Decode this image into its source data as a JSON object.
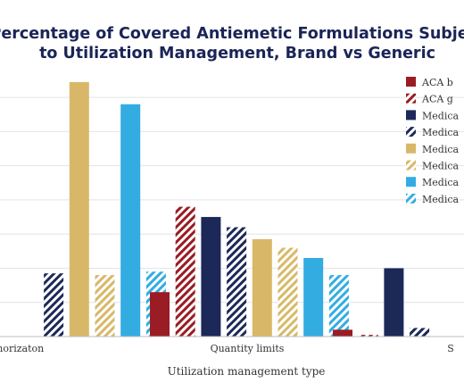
{
  "chart_data": {
    "type": "bar",
    "title_lines": [
      "Percentage of Covered Antiemetic Formulations Subject",
      "to Utilization Management, Brand vs Generic"
    ],
    "xlabel": "Utilization management type",
    "ylabel": "",
    "categories": [
      "Prior authorizaton",
      "Quantity limits",
      "Step therapy"
    ],
    "category_tick_labels": [
      "uthorizaton",
      "Quantity limits",
      "S"
    ],
    "ylim": [
      0,
      75
    ],
    "grid": "horizontal",
    "legend_position": "top-right",
    "series": [
      {
        "name": "ACA b",
        "color": "#9a1c24",
        "pattern": "solid",
        "values": [
          null,
          13,
          2
        ]
      },
      {
        "name": "ACA g",
        "color": "#9a1c24",
        "pattern": "hatched",
        "values": [
          null,
          38,
          0.5
        ]
      },
      {
        "name": "Medica",
        "color": "#1c2858",
        "pattern": "solid",
        "values": [
          null,
          35,
          20
        ]
      },
      {
        "name": "Medica",
        "color": "#1c2858",
        "pattern": "hatched",
        "values": [
          18.5,
          32,
          2.5
        ]
      },
      {
        "name": "Medica",
        "color": "#d8b868",
        "pattern": "solid",
        "values": [
          74.5,
          28.5,
          null
        ]
      },
      {
        "name": "Medica",
        "color": "#d8b868",
        "pattern": "hatched",
        "values": [
          18,
          26,
          null
        ]
      },
      {
        "name": "Medica",
        "color": "#33ace2",
        "pattern": "solid",
        "values": [
          68,
          23,
          null
        ]
      },
      {
        "name": "Medica",
        "color": "#33ace2",
        "pattern": "hatched",
        "values": [
          19,
          18,
          null
        ]
      }
    ]
  }
}
